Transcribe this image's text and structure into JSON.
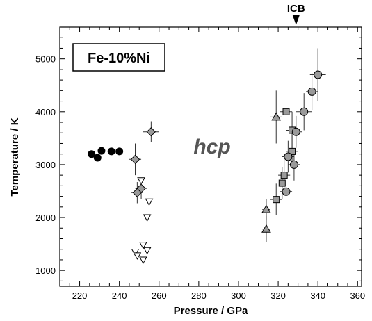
{
  "chart_data": {
    "type": "scatter",
    "xlabel": "Pressure / GPa",
    "ylabel": "Temperature / K",
    "xlim": [
      210,
      362
    ],
    "ylim": [
      700,
      5600
    ],
    "x_ticks": [
      220,
      240,
      260,
      280,
      300,
      320,
      340,
      360
    ],
    "y_ticks": [
      1000,
      2000,
      3000,
      4000,
      5000
    ],
    "legend_label": "Fe-10%Ni",
    "phase_label": "hcp",
    "marker_label": "ICB",
    "marker_x": 329,
    "series": [
      {
        "marker": "filled-circle",
        "points": [
          {
            "x": 226,
            "y": 3200
          },
          {
            "x": 229,
            "y": 3130
          },
          {
            "x": 231,
            "y": 3260
          },
          {
            "x": 236,
            "y": 3250
          },
          {
            "x": 240,
            "y": 3250
          }
        ]
      },
      {
        "marker": "open-triangle-down",
        "points": [
          {
            "x": 251,
            "y": 2700
          },
          {
            "x": 255,
            "y": 2300
          },
          {
            "x": 254,
            "y": 2000
          },
          {
            "x": 248,
            "y": 1350
          },
          {
            "x": 249,
            "y": 1280
          },
          {
            "x": 252,
            "y": 1480
          },
          {
            "x": 254,
            "y": 1380
          },
          {
            "x": 252,
            "y": 1200
          }
        ]
      },
      {
        "marker": "grey-diamond",
        "points": [
          {
            "x": 248,
            "y": 3100,
            "xerr": 3,
            "yerr": 300
          },
          {
            "x": 256,
            "y": 3620,
            "xerr": 4,
            "yerr": 200
          },
          {
            "x": 251,
            "y": 2550,
            "xerr": 3,
            "yerr": 200
          },
          {
            "x": 249,
            "y": 2470,
            "xerr": 3,
            "yerr": 200
          }
        ]
      },
      {
        "marker": "grey-triangle-up",
        "points": [
          {
            "x": 319,
            "y": 3900,
            "xerr": 3,
            "yerr": 500
          },
          {
            "x": 314,
            "y": 2150,
            "xerr": 2,
            "yerr": 200
          },
          {
            "x": 314,
            "y": 1780,
            "xerr": 2,
            "yerr": 250
          }
        ]
      },
      {
        "marker": "grey-square",
        "points": [
          {
            "x": 324,
            "y": 4000,
            "xerr": 3,
            "yerr": 300
          },
          {
            "x": 327,
            "y": 3650,
            "xerr": 3,
            "yerr": 350
          },
          {
            "x": 327,
            "y": 3250,
            "xerr": 3,
            "yerr": 300
          },
          {
            "x": 323,
            "y": 2800,
            "xerr": 3,
            "yerr": 300
          },
          {
            "x": 322,
            "y": 2650,
            "xerr": 3,
            "yerr": 300
          },
          {
            "x": 319,
            "y": 2340,
            "xerr": 3,
            "yerr": 300
          }
        ]
      },
      {
        "marker": "grey-circle",
        "points": [
          {
            "x": 340,
            "y": 4700,
            "xerr": 4,
            "yerr": 500
          },
          {
            "x": 337,
            "y": 4380,
            "xerr": 3,
            "yerr": 350
          },
          {
            "x": 333,
            "y": 4000,
            "xerr": 4,
            "yerr": 350
          },
          {
            "x": 329,
            "y": 3620,
            "xerr": 3,
            "yerr": 300
          },
          {
            "x": 325,
            "y": 3150,
            "xerr": 3,
            "yerr": 300
          },
          {
            "x": 328,
            "y": 3000,
            "xerr": 3,
            "yerr": 300
          },
          {
            "x": 324,
            "y": 2490,
            "xerr": 3,
            "yerr": 250
          }
        ]
      }
    ]
  }
}
